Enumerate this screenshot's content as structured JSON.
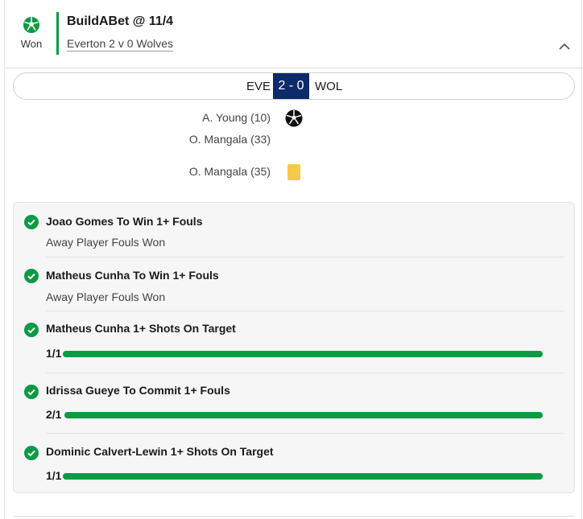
{
  "bet": {
    "status": "Won",
    "title": "BuildABet @ 11/4",
    "match": "Everton 2 v 0 Wolves"
  },
  "scoreboard": {
    "home": "EVE",
    "score": "2 - 0",
    "away": "WOL",
    "score_bg": "#0d2a6b"
  },
  "events": [
    {
      "player": "A. Young (10)",
      "type": "goal-icon"
    },
    {
      "player": "O. Mangala (33)",
      "type": ""
    },
    {
      "player": "O. Mangala (35)",
      "type": "yellow-card-icon"
    }
  ],
  "selections": [
    {
      "title": "Joao Gomes To Win 1+ Fouls",
      "subtitle": "Away Player Fouls Won"
    },
    {
      "title": "Matheus Cunha To Win 1+ Fouls",
      "subtitle": "Away Player Fouls Won"
    },
    {
      "title": "Matheus Cunha 1+ Shots On Target",
      "progress_label": "1/1",
      "progress": 1.0
    },
    {
      "title": "Idrissa Gueye To Commit 1+ Fouls",
      "progress_label": "2/1",
      "progress": 1.0
    },
    {
      "title": "Dominic Calvert-Lewin 1+ Shots On Target",
      "progress_label": "1/1",
      "progress": 1.0
    }
  ],
  "colors": {
    "won_green": "#0c9a44",
    "yellow_card": "#f6c94a"
  }
}
